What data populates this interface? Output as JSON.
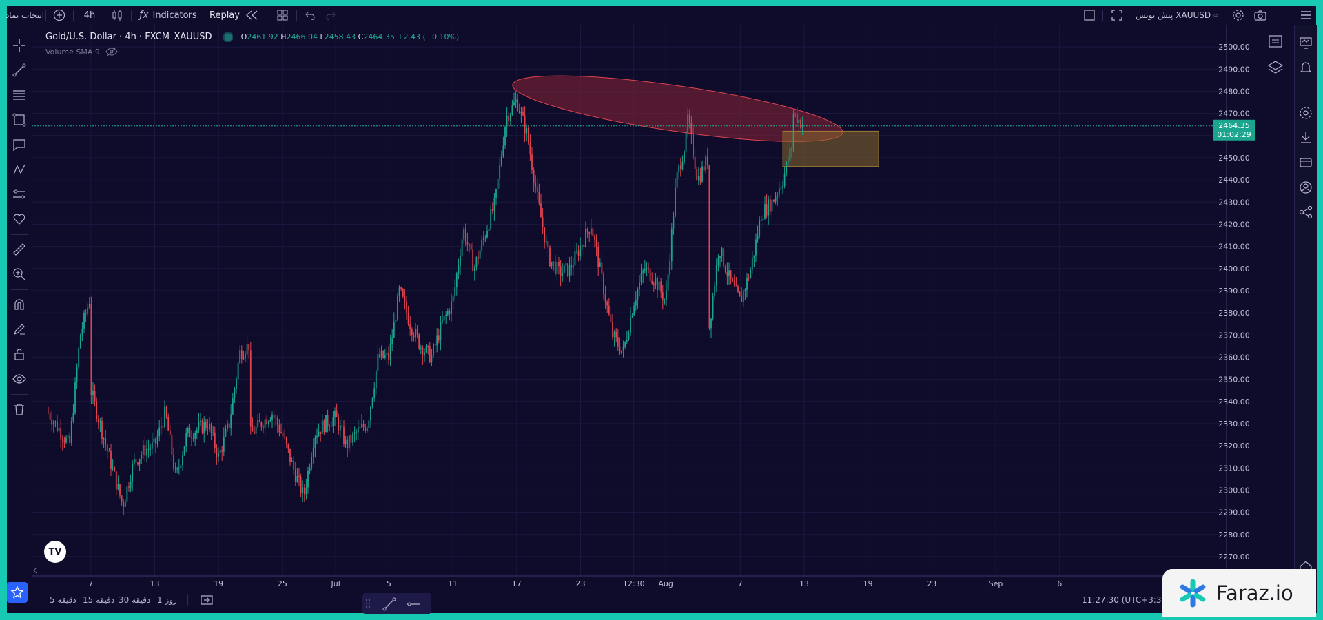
{
  "topbar": {
    "symbol_select_label": "انتخاب نماد",
    "interval": "4h",
    "indicators_label": "Indicators",
    "replay_label": "Replay",
    "symbol_name": "XAUUSD",
    "prefix_label": "پیش نویس"
  },
  "legend": {
    "title": "Gold/U.S. Dollar · 4h · FXCM_XAUUSD",
    "open_label": "O",
    "open": "2461.92",
    "high_label": "H",
    "high": "2466.04",
    "low_label": "L",
    "low": "2458.43",
    "close_label": "C",
    "close": "2464.35",
    "change": "+2.43 (+0.10%)",
    "volume_label": "Volume SMA 9"
  },
  "price_axis": {
    "ticks": [
      "2500.00",
      "2490.00",
      "2480.00",
      "2470.00",
      "2460.00",
      "2450.00",
      "2440.00",
      "2430.00",
      "2420.00",
      "2410.00",
      "2400.00",
      "2390.00",
      "2380.00",
      "2370.00",
      "2360.00",
      "2350.00",
      "2340.00",
      "2330.00",
      "2320.00",
      "2310.00",
      "2300.00",
      "2290.00",
      "2280.00",
      "2270.00"
    ],
    "last_price": "2464.35",
    "countdown": "01:02:29"
  },
  "time_axis": {
    "ticks": [
      "7",
      "13",
      "19",
      "25",
      "Jul",
      "5",
      "11",
      "17",
      "23",
      "12:30",
      "Aug",
      "7",
      "13",
      "19",
      "23",
      "Sep",
      "6"
    ]
  },
  "chart_data": {
    "type": "candlestick",
    "symbol": "XAUUSD",
    "interval": "4h",
    "ylim": [
      2265,
      2505
    ],
    "trend_path": [
      [
        "Jun 3",
        2335
      ],
      [
        "Jun 5",
        2320
      ],
      [
        "Jun 6",
        2370
      ],
      [
        "Jun 7",
        2388
      ],
      [
        "Jun 7",
        2345
      ],
      [
        "Jun 9",
        2310
      ],
      [
        "Jun 10",
        2293
      ],
      [
        "Jun 11",
        2312
      ],
      [
        "Jun 12",
        2318
      ],
      [
        "Jun 13",
        2320
      ],
      [
        "Jun 14",
        2335
      ],
      [
        "Jun 15",
        2305
      ],
      [
        "Jun 16",
        2325
      ],
      [
        "Jun 18",
        2330
      ],
      [
        "Jun 19",
        2315
      ],
      [
        "Jun 20",
        2330
      ],
      [
        "Jun 21",
        2362
      ],
      [
        "Jun 22",
        2366
      ],
      [
        "Jun 22",
        2325
      ],
      [
        "Jun 24",
        2335
      ],
      [
        "Jun 25",
        2325
      ],
      [
        "Jun 26",
        2310
      ],
      [
        "Jun 27",
        2297
      ],
      [
        "Jun 28",
        2325
      ],
      [
        "Jun 29",
        2330
      ],
      [
        "Jun 30",
        2333
      ],
      [
        "Jul 1",
        2320
      ],
      [
        "Jul 2",
        2326
      ],
      [
        "Jul 3",
        2330
      ],
      [
        "Jul 4",
        2360
      ],
      [
        "Jul 5",
        2360
      ],
      [
        "Jul 6",
        2390
      ],
      [
        "Jul 7",
        2375
      ],
      [
        "Jul 8",
        2365
      ],
      [
        "Jul 9",
        2360
      ],
      [
        "Jul 10",
        2375
      ],
      [
        "Jul 11",
        2385
      ],
      [
        "Jul 12",
        2418
      ],
      [
        "Jul 13",
        2400
      ],
      [
        "Jul 14",
        2415
      ],
      [
        "Jul 15",
        2430
      ],
      [
        "Jul 16",
        2468
      ],
      [
        "Jul 17",
        2476
      ],
      [
        "Jul 18",
        2460
      ],
      [
        "Jul 19",
        2430
      ],
      [
        "Jul 20",
        2405
      ],
      [
        "Jul 21",
        2398
      ],
      [
        "Jul 22",
        2400
      ],
      [
        "Jul 23",
        2410
      ],
      [
        "Jul 24",
        2420
      ],
      [
        "Jul 25",
        2395
      ],
      [
        "Jul 26",
        2370
      ],
      [
        "Jul 27",
        2362
      ],
      [
        "Jul 28",
        2385
      ],
      [
        "Jul 29",
        2400
      ],
      [
        "Jul 30",
        2395
      ],
      [
        "Jul 31",
        2385
      ],
      [
        "Aug 1",
        2440
      ],
      [
        "Aug 2",
        2460
      ],
      [
        "Aug 2",
        2470
      ],
      [
        "Aug 3",
        2440
      ],
      [
        "Aug 4",
        2450
      ],
      [
        "Aug 4",
        2370
      ],
      [
        "Aug 5",
        2410
      ],
      [
        "Aug 6",
        2395
      ],
      [
        "Aug 7",
        2385
      ],
      [
        "Aug 8",
        2400
      ],
      [
        "Aug 9",
        2425
      ],
      [
        "Aug 10",
        2430
      ],
      [
        "Aug 11",
        2440
      ],
      [
        "Aug 12",
        2458
      ],
      [
        "Aug 12",
        2470
      ],
      [
        "Aug 13",
        2464
      ]
    ],
    "last_price": 2464.35,
    "annotations": [
      {
        "type": "ellipse",
        "color": "#8a2535",
        "from": [
          "Jul 17",
          2482
        ],
        "to": [
          "Aug 13",
          2461
        ]
      },
      {
        "type": "rectangle",
        "color": "#8a6a2c",
        "from": [
          "Aug 11",
          2462
        ],
        "to": [
          "Aug 20",
          2446
        ]
      }
    ]
  },
  "bottombar": {
    "ranges": [
      "5 دقیقه",
      "15 دقیقه",
      "30 دقیقه",
      "1 روز"
    ],
    "time": "11:27:30 (UTC+3:3"
  },
  "brand": {
    "name": "Faraz.io"
  },
  "colors": {
    "background": "#0e0c2a",
    "up": "#1ba58f",
    "down": "#e2434f",
    "frame": "#17c8b2"
  }
}
